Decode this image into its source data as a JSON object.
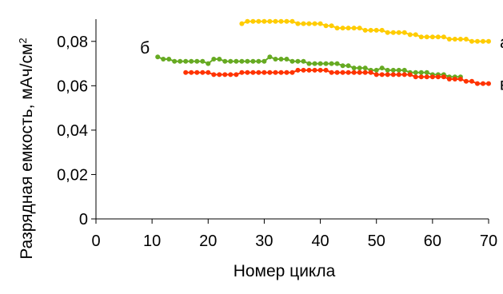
{
  "chart_data": {
    "type": "line",
    "title": "",
    "xlabel": "Номер цикла",
    "ylabel": "Разрядная емкость, мАч/см",
    "ylabel_superscript": "2",
    "xlim": [
      0,
      70
    ],
    "ylim": [
      0,
      0.09
    ],
    "xticks": [
      0,
      10,
      20,
      30,
      40,
      50,
      60,
      70
    ],
    "xtick_labels": [
      "0",
      "10",
      "20",
      "30",
      "40",
      "50",
      "60",
      "70"
    ],
    "yticks": [
      0,
      0.02,
      0.04,
      0.06,
      0.08
    ],
    "ytick_labels": [
      "0",
      "0,02",
      "0,04",
      "0,06",
      "0,08"
    ],
    "grid": false,
    "legend": "none",
    "series": [
      {
        "name": "а",
        "color": "#ffcc00",
        "x": [
          26,
          27,
          28,
          29,
          30,
          31,
          32,
          33,
          34,
          35,
          36,
          37,
          38,
          39,
          40,
          41,
          42,
          43,
          44,
          45,
          46,
          47,
          48,
          49,
          50,
          51,
          52,
          53,
          54,
          55,
          56,
          57,
          58,
          59,
          60,
          61,
          62,
          63,
          64,
          65,
          66,
          67,
          68,
          69,
          70
        ],
        "y": [
          0.088,
          0.089,
          0.089,
          0.089,
          0.089,
          0.089,
          0.089,
          0.089,
          0.089,
          0.089,
          0.088,
          0.088,
          0.088,
          0.088,
          0.088,
          0.087,
          0.087,
          0.086,
          0.086,
          0.086,
          0.086,
          0.086,
          0.085,
          0.085,
          0.085,
          0.085,
          0.084,
          0.084,
          0.084,
          0.084,
          0.083,
          0.083,
          0.082,
          0.082,
          0.082,
          0.082,
          0.082,
          0.081,
          0.081,
          0.081,
          0.081,
          0.08,
          0.08,
          0.08,
          0.08
        ]
      },
      {
        "name": "б",
        "color": "#66aa22",
        "x": [
          11,
          12,
          13,
          14,
          15,
          16,
          17,
          18,
          19,
          20,
          21,
          22,
          23,
          24,
          25,
          26,
          27,
          28,
          29,
          30,
          31,
          32,
          33,
          34,
          35,
          36,
          37,
          38,
          39,
          40,
          41,
          42,
          43,
          44,
          45,
          46,
          47,
          48,
          49,
          50,
          51,
          52,
          53,
          54,
          55,
          56,
          57,
          58,
          59,
          60,
          61,
          62,
          63,
          64,
          65
        ],
        "y": [
          0.073,
          0.072,
          0.072,
          0.071,
          0.071,
          0.071,
          0.071,
          0.071,
          0.071,
          0.07,
          0.072,
          0.072,
          0.071,
          0.071,
          0.071,
          0.071,
          0.071,
          0.071,
          0.071,
          0.071,
          0.073,
          0.072,
          0.072,
          0.072,
          0.071,
          0.071,
          0.071,
          0.07,
          0.07,
          0.07,
          0.07,
          0.07,
          0.07,
          0.069,
          0.069,
          0.068,
          0.068,
          0.068,
          0.067,
          0.067,
          0.068,
          0.067,
          0.067,
          0.067,
          0.067,
          0.066,
          0.066,
          0.066,
          0.066,
          0.065,
          0.065,
          0.065,
          0.064,
          0.064,
          0.064
        ]
      },
      {
        "name": "в",
        "color": "#ff3300",
        "x": [
          16,
          17,
          18,
          19,
          20,
          21,
          22,
          23,
          24,
          25,
          26,
          27,
          28,
          29,
          30,
          31,
          32,
          33,
          34,
          35,
          36,
          37,
          38,
          39,
          40,
          41,
          42,
          43,
          44,
          45,
          46,
          47,
          48,
          49,
          50,
          51,
          52,
          53,
          54,
          55,
          56,
          57,
          58,
          59,
          60,
          61,
          62,
          63,
          64,
          65,
          66,
          67,
          68,
          69,
          70
        ],
        "y": [
          0.066,
          0.066,
          0.066,
          0.066,
          0.066,
          0.065,
          0.065,
          0.065,
          0.065,
          0.065,
          0.066,
          0.066,
          0.066,
          0.066,
          0.066,
          0.066,
          0.066,
          0.066,
          0.066,
          0.066,
          0.067,
          0.067,
          0.067,
          0.067,
          0.067,
          0.067,
          0.066,
          0.066,
          0.066,
          0.066,
          0.066,
          0.066,
          0.066,
          0.066,
          0.065,
          0.065,
          0.065,
          0.065,
          0.065,
          0.065,
          0.065,
          0.064,
          0.064,
          0.064,
          0.064,
          0.064,
          0.064,
          0.063,
          0.063,
          0.063,
          0.062,
          0.062,
          0.061,
          0.061,
          0.061
        ]
      }
    ],
    "series_labels": [
      {
        "text": "а",
        "series": 0
      },
      {
        "text": "б",
        "series": 1
      },
      {
        "text": "в",
        "series": 2
      }
    ]
  }
}
